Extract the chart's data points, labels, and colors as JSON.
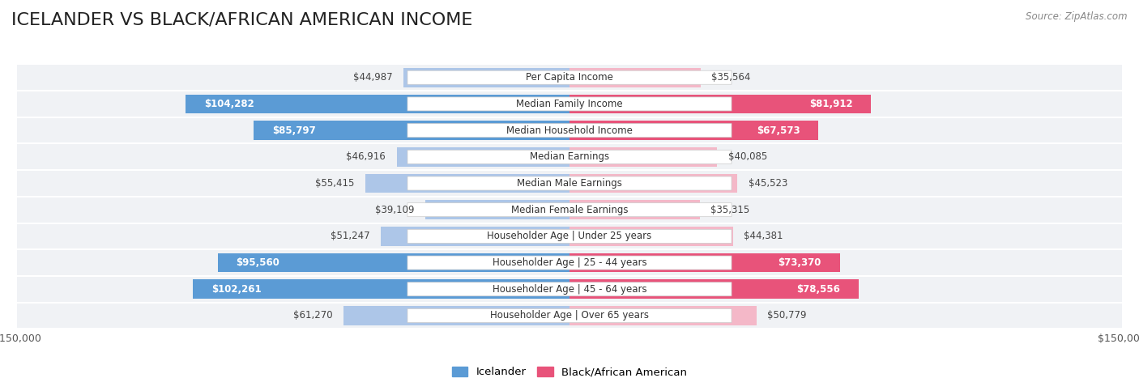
{
  "title": "ICELANDER VS BLACK/AFRICAN AMERICAN INCOME",
  "source": "Source: ZipAtlas.com",
  "max_value": 150000,
  "categories": [
    "Per Capita Income",
    "Median Family Income",
    "Median Household Income",
    "Median Earnings",
    "Median Male Earnings",
    "Median Female Earnings",
    "Householder Age | Under 25 years",
    "Householder Age | 25 - 44 years",
    "Householder Age | 45 - 64 years",
    "Householder Age | Over 65 years"
  ],
  "icelander_values": [
    44987,
    104282,
    85797,
    46916,
    55415,
    39109,
    51247,
    95560,
    102261,
    61270
  ],
  "black_values": [
    35564,
    81912,
    67573,
    40085,
    45523,
    35315,
    44381,
    73370,
    78556,
    50779
  ],
  "icelander_color_light": "#adc6e8",
  "icelander_color_dark": "#5b9bd5",
  "black_color_light": "#f4b8c8",
  "black_color_dark": "#e8537a",
  "row_bg_light": "#f0f2f5",
  "row_bg_dark": "#e2e6ed",
  "label_bg_color": "#ffffff",
  "title_fontsize": 16,
  "label_fontsize": 8.5,
  "value_fontsize": 8.5,
  "legend_fontsize": 9.5,
  "source_fontsize": 8.5,
  "icelander_label": "Icelander",
  "black_label": "Black/African American"
}
